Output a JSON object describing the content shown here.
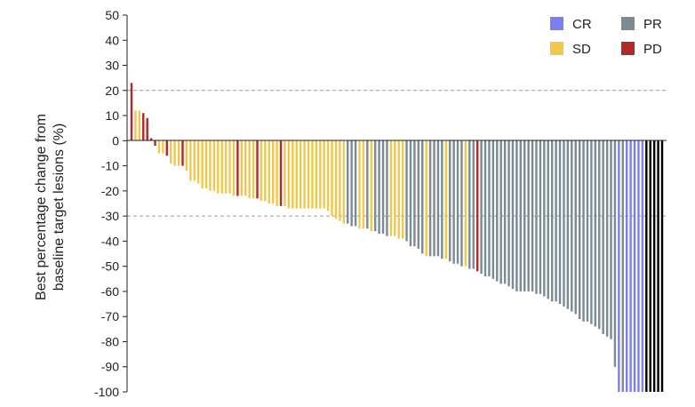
{
  "chart_data": {
    "type": "bar",
    "ylabel_lines": [
      "Best percentage change from",
      "baseline target lesions (%)"
    ],
    "ylim": [
      -100,
      50
    ],
    "yticks": [
      50,
      40,
      30,
      20,
      10,
      0,
      -10,
      -20,
      -30,
      -40,
      -50,
      -60,
      -70,
      -80,
      -90,
      -100
    ],
    "reference_lines": [
      20,
      -30
    ],
    "legend_position": "top-right",
    "legend": [
      {
        "label": "CR",
        "key": "CR"
      },
      {
        "label": "PR",
        "key": "PR"
      },
      {
        "label": "SD",
        "key": "SD"
      },
      {
        "label": "PD",
        "key": "PD"
      }
    ],
    "colors": {
      "CR": "#7b7ff2",
      "PR": "#7b8b96",
      "SD": "#f0c94a",
      "PD": "#b02a2a"
    },
    "series": [
      {
        "name": "CR",
        "key": "CR"
      },
      {
        "name": "PR",
        "key": "PR"
      },
      {
        "name": "SD",
        "key": "SD"
      },
      {
        "name": "PD",
        "key": "PD"
      }
    ],
    "responses": [
      "PD",
      "SD",
      "SD",
      "PD",
      "PD",
      "PD",
      "PD",
      "SD",
      "SD",
      "PD",
      "SD",
      "SD",
      "SD",
      "PD",
      "SD",
      "SD",
      "SD",
      "SD",
      "SD",
      "SD",
      "SD",
      "SD",
      "SD",
      "SD",
      "SD",
      "SD",
      "SD",
      "PD",
      "SD",
      "SD",
      "SD",
      "SD",
      "PD",
      "SD",
      "SD",
      "SD",
      "SD",
      "SD",
      "PD",
      "SD",
      "SD",
      "SD",
      "SD",
      "SD",
      "SD",
      "SD",
      "SD",
      "SD",
      "SD",
      "SD",
      "SD",
      "SD",
      "SD",
      "SD",
      "SD",
      "PR",
      "PR",
      "PR",
      "SD",
      "SD",
      "PR",
      "SD",
      "PR",
      "PR",
      "PR",
      "PR",
      "SD",
      "SD",
      "SD",
      "SD",
      "PR",
      "PR",
      "PR",
      "PR",
      "PR",
      "SD",
      "PR",
      "PR",
      "PR",
      "PR",
      "SD",
      "PR",
      "PR",
      "PR",
      "PR",
      "SD",
      "PR",
      "PR",
      "PD",
      "PR",
      "PR",
      "PR",
      "PR",
      "PR",
      "PR",
      "PR",
      "PR",
      "PR",
      "PR",
      "PR",
      "PR",
      "PR",
      "PR",
      "PR",
      "PR",
      "PR",
      "PR",
      "PR",
      "PR",
      "PR",
      "PR",
      "PR",
      "PR",
      "PR",
      "PR",
      "PR",
      "PR",
      "PR",
      "PR",
      "PR",
      "PR",
      "PR",
      "PR",
      "PR",
      "CR",
      "PR",
      "CR",
      "CR",
      "CR",
      "CR",
      "CR"
    ],
    "values": [
      23,
      12,
      12,
      11,
      9,
      1,
      -2,
      -5,
      -5,
      -6,
      -9,
      -10,
      -10,
      -10,
      -12,
      -16,
      -16,
      -17,
      -19,
      -19,
      -20,
      -20,
      -21,
      -21,
      -21,
      -21,
      -22,
      -22,
      -22,
      -22,
      -23,
      -23,
      -23,
      -24,
      -24,
      -25,
      -25,
      -26,
      -26,
      -26,
      -27,
      -27,
      -27,
      -27,
      -27,
      -27,
      -27,
      -27,
      -27,
      -27,
      -28,
      -30,
      -31,
      -32,
      -33,
      -33,
      -34,
      -34,
      -35,
      -35,
      -35,
      -36,
      -36,
      -37,
      -37,
      -38,
      -38,
      -38,
      -39,
      -39,
      -40,
      -42,
      -42,
      -43,
      -45,
      -46,
      -46,
      -46,
      -46,
      -47,
      -47,
      -48,
      -49,
      -49,
      -50,
      -50,
      -51,
      -51,
      -52,
      -53,
      -54,
      -54,
      -55,
      -56,
      -57,
      -57,
      -58,
      -59,
      -60,
      -60,
      -60,
      -60,
      -60,
      -61,
      -61,
      -62,
      -63,
      -64,
      -64,
      -65,
      -66,
      -67,
      -68,
      -69,
      -71,
      -72,
      -72,
      -73,
      -74,
      -75,
      -77,
      -78,
      -79,
      -90,
      -100,
      -100,
      -100,
      -100,
      -100,
      -100,
      -100,
      -100,
      -100,
      -100,
      -100,
      -100
    ]
  }
}
